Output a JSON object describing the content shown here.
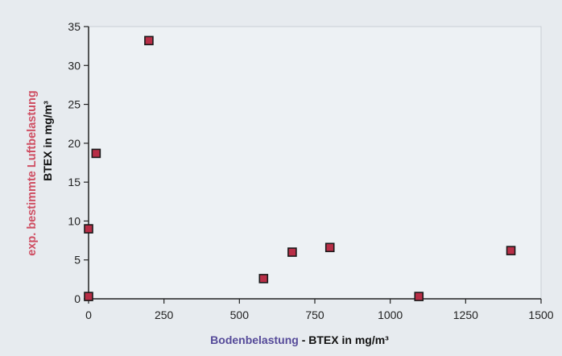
{
  "colors": {
    "background": "#e7ebef",
    "plot_area": "#edf1f4",
    "marker_fill": "#b82e46",
    "marker_stroke": "#1a1a1a",
    "ylabel_line1": "#cf4f63",
    "ylabel_line2": "#111111",
    "xlabel_part1": "#554a99",
    "xlabel_part2": "#111111",
    "axis": "#222222",
    "tick_text": "#222222"
  },
  "chart_data": {
    "type": "scatter",
    "xlim": [
      0,
      1500
    ],
    "ylim": [
      0,
      35
    ],
    "x_ticks": [
      0,
      250,
      500,
      750,
      1000,
      1250,
      1500
    ],
    "y_ticks": [
      0,
      5,
      10,
      15,
      20,
      25,
      30,
      35
    ],
    "x_tick_labels": [
      "0",
      "250",
      "500",
      "750",
      "1000",
      "1250",
      "1500"
    ],
    "y_tick_labels": [
      "0",
      "5",
      "10",
      "15",
      "20",
      "25",
      "30",
      "35"
    ],
    "xlabel_part1": "Bodenbelastung",
    "xlabel_part2": " - BTEX  in mg/m³",
    "ylabel_line1": "exp. bestimmte Luftbelastung",
    "ylabel_line2": "BTEX in mg/m³",
    "grid": false,
    "legend": "none",
    "points": [
      {
        "x": 0,
        "y": 0.3
      },
      {
        "x": 0,
        "y": 9.0
      },
      {
        "x": 25,
        "y": 18.7
      },
      {
        "x": 200,
        "y": 33.2
      },
      {
        "x": 580,
        "y": 2.6
      },
      {
        "x": 675,
        "y": 6.0
      },
      {
        "x": 800,
        "y": 6.6
      },
      {
        "x": 1095,
        "y": 0.3
      },
      {
        "x": 1400,
        "y": 6.2
      }
    ]
  }
}
